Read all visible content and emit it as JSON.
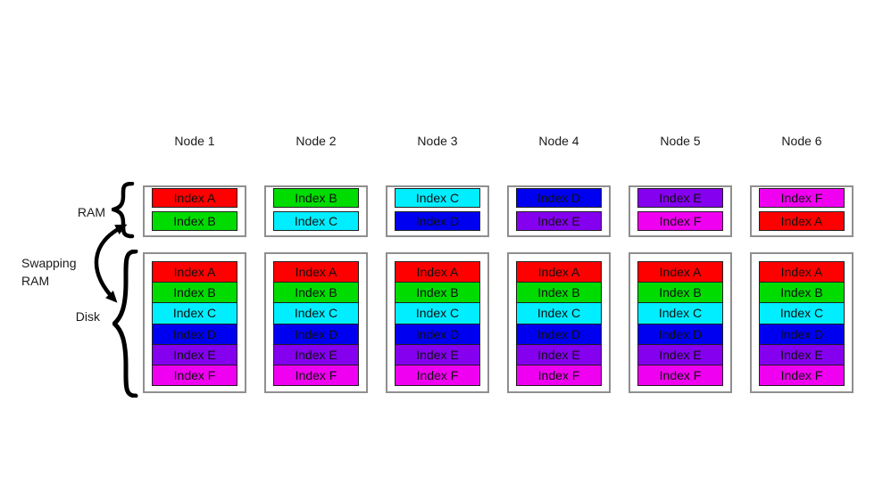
{
  "diagram": {
    "labels": {
      "ram": "RAM",
      "swapping_ram": "Swapping RAM",
      "disk": "Disk"
    },
    "index_colors": {
      "Index A": "#ff0000",
      "Index B": "#00dc00",
      "Index C": "#00eeff",
      "Index D": "#0000f0",
      "Index E": "#8400ee",
      "Index F": "#f000f0"
    },
    "nodes": [
      {
        "header": "Node 1",
        "ram": [
          "Index A",
          "Index B"
        ],
        "disk": [
          "Index A",
          "Index B",
          "Index C",
          "Index D",
          "Index E",
          "Index F"
        ]
      },
      {
        "header": "Node 2",
        "ram": [
          "Index B",
          "Index C"
        ],
        "disk": [
          "Index A",
          "Index B",
          "Index C",
          "Index D",
          "Index E",
          "Index F"
        ]
      },
      {
        "header": "Node 3",
        "ram": [
          "Index C",
          "Index D"
        ],
        "disk": [
          "Index A",
          "Index B",
          "Index C",
          "Index D",
          "Index E",
          "Index F"
        ]
      },
      {
        "header": "Node 4",
        "ram": [
          "Index D",
          "Index E"
        ],
        "disk": [
          "Index A",
          "Index B",
          "Index C",
          "Index D",
          "Index E",
          "Index F"
        ]
      },
      {
        "header": "Node 5",
        "ram": [
          "Index E",
          "Index F"
        ],
        "disk": [
          "Index A",
          "Index B",
          "Index C",
          "Index D",
          "Index E",
          "Index F"
        ]
      },
      {
        "header": "Node 6",
        "ram": [
          "Index F",
          "Index A"
        ],
        "disk": [
          "Index A",
          "Index B",
          "Index C",
          "Index D",
          "Index E",
          "Index F"
        ]
      }
    ]
  }
}
